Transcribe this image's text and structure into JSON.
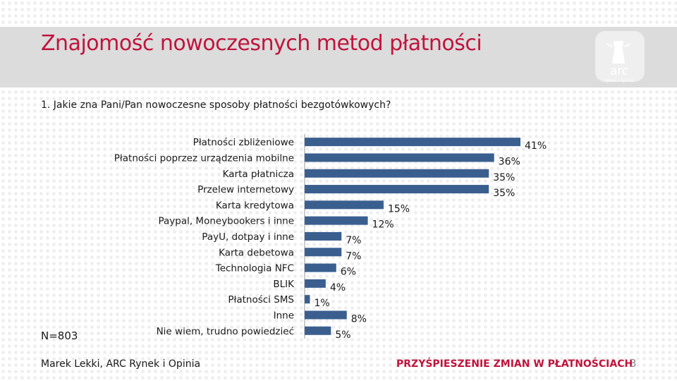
{
  "slide": {
    "title": "Znajomość nowoczesnych metod płatności",
    "question": "1. Jakie zna Pani/Pan nowoczesne sposoby płatności bezgotówkowych?",
    "sample": "N=803",
    "logo_text": "arc",
    "logo_subtext": "rynek i opinia",
    "footer_author": "Marek Lekki, ARC Rynek i Opinia",
    "footer_tagline": "PRZYŚPIESZENIE ZMIAN W PŁATNOŚCIACH",
    "page_number": "3",
    "colors": {
      "title": "#c0143c",
      "bar": "#3a5f8f",
      "band": "#dcdcdc"
    }
  },
  "chart_data": {
    "type": "bar",
    "orientation": "horizontal",
    "categories": [
      "Płatności zbliżeniowe",
      "Płatności poprzez urządzenia mobilne",
      "Karta płatnicza",
      "Przelew internetowy",
      "Karta kredytowa",
      "Paypal, Moneybookers i inne",
      "PayU, dotpay i inne",
      "Karta debetowa",
      "Technologia NFC",
      "BLIK",
      "Płatności SMS",
      "Inne",
      "Nie wiem, trudno powiedzieć"
    ],
    "values": [
      41,
      36,
      35,
      35,
      15,
      12,
      7,
      7,
      6,
      4,
      1,
      8,
      5
    ],
    "data_labels": [
      "41%",
      "36%",
      "35%",
      "35%",
      "15%",
      "12%",
      "7%",
      "7%",
      "6%",
      "4%",
      "1%",
      "8%",
      "5%"
    ],
    "unit": "%",
    "xlim": [
      0,
      41
    ],
    "grid": false,
    "legend": "none"
  }
}
